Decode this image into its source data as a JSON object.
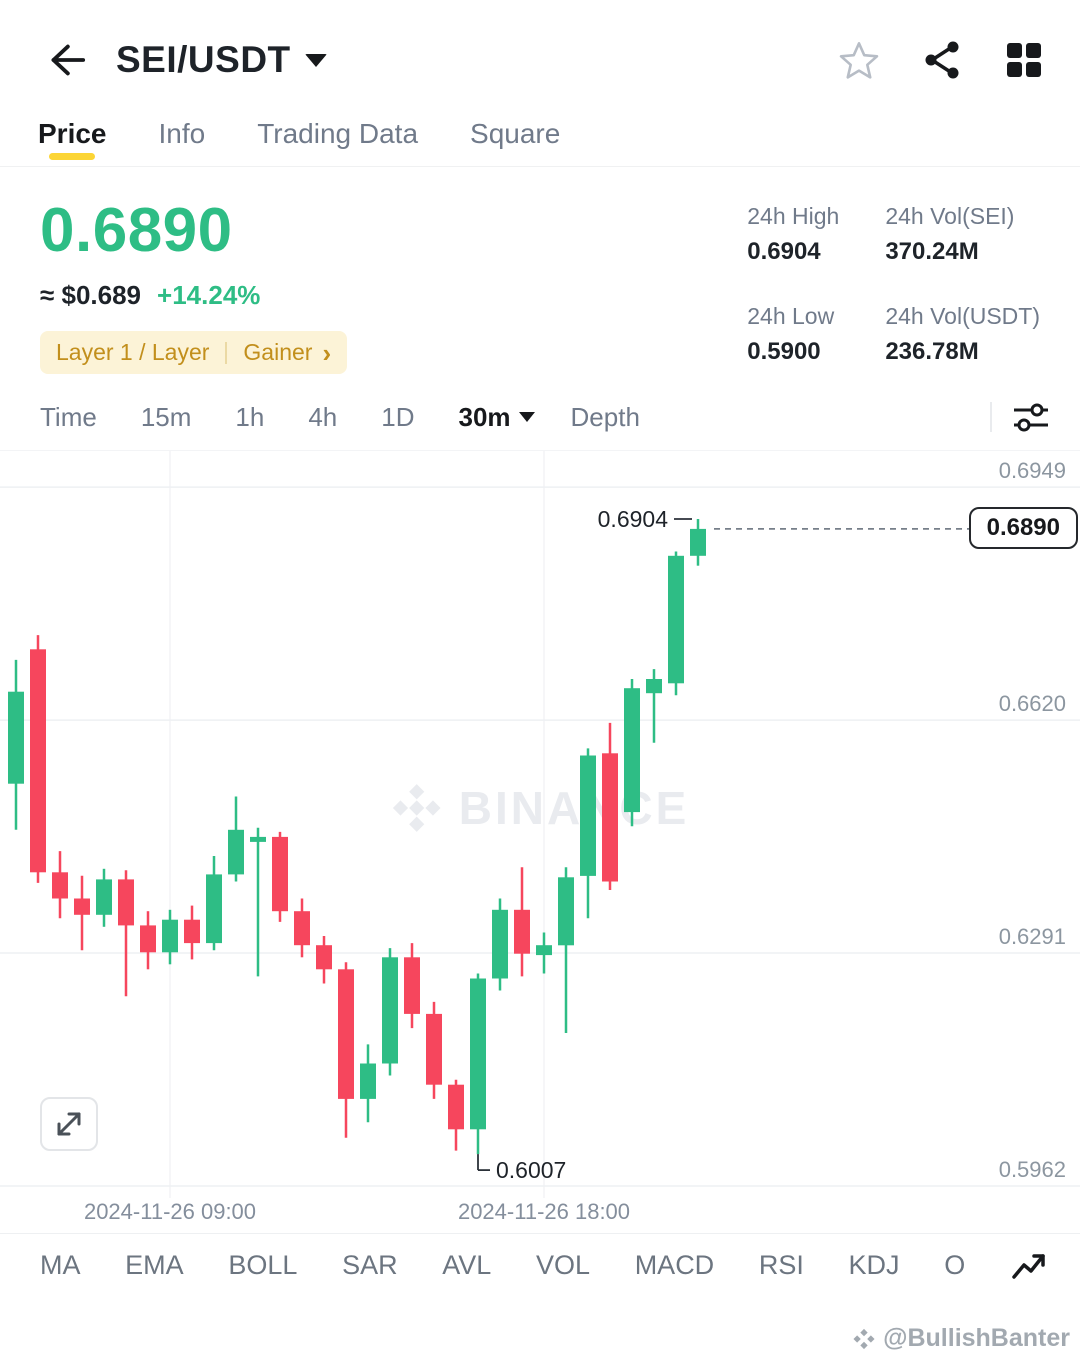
{
  "header": {
    "title": "SEI/USDT"
  },
  "tabs": [
    {
      "label": "Price",
      "active": true
    },
    {
      "label": "Info",
      "active": false
    },
    {
      "label": "Trading Data",
      "active": false
    },
    {
      "label": "Square",
      "active": false
    }
  ],
  "price": {
    "value": "0.6890",
    "approx": "≈ $0.689",
    "change": "+14.24%",
    "tag_left": "Layer 1 / Layer",
    "tag_right": "Gainer"
  },
  "stats": [
    {
      "label": "24h High",
      "value": "0.6904"
    },
    {
      "label": "24h Vol(SEI)",
      "value": "370.24M"
    },
    {
      "label": "24h Low",
      "value": "0.5900"
    },
    {
      "label": "24h Vol(USDT)",
      "value": "236.78M"
    }
  ],
  "timeframes": {
    "items": [
      "Time",
      "15m",
      "1h",
      "4h",
      "1D"
    ],
    "selected": "30m",
    "depth": "Depth"
  },
  "chart_data": {
    "type": "candlestick",
    "pair": "SEI/USDT",
    "interval": "30m",
    "current_price": 0.689,
    "current_price_label": "0.6890",
    "axis": {
      "price_max": 0.7,
      "price_min": 0.5945
    },
    "y_gridlines": [
      0.6949,
      0.662,
      0.6291,
      0.5962
    ],
    "y_axis_labels": [
      "0.6949",
      "0.6620",
      "0.6291",
      "0.5962"
    ],
    "high_annotation": {
      "index": 31,
      "label": "0.6904",
      "price": 0.6904
    },
    "low_annotation": {
      "index": 21,
      "label": "0.6007",
      "price": 0.6007
    },
    "x_labels": [
      {
        "text": "2024-11-26 09:00",
        "index": 7
      },
      {
        "text": "2024-11-26 18:00",
        "index": 24
      }
    ],
    "candles": [
      [
        0.653,
        0.6705,
        0.6465,
        0.666
      ],
      [
        0.672,
        0.674,
        0.639,
        0.6405
      ],
      [
        0.6405,
        0.6435,
        0.634,
        0.6368
      ],
      [
        0.6368,
        0.64,
        0.6295,
        0.6345
      ],
      [
        0.6345,
        0.641,
        0.6328,
        0.6395
      ],
      [
        0.6395,
        0.6408,
        0.623,
        0.633
      ],
      [
        0.633,
        0.635,
        0.6268,
        0.6292
      ],
      [
        0.6292,
        0.6352,
        0.6275,
        0.6338
      ],
      [
        0.6338,
        0.6358,
        0.6282,
        0.6305
      ],
      [
        0.6305,
        0.6428,
        0.6295,
        0.6402
      ],
      [
        0.6402,
        0.6512,
        0.6392,
        0.6465
      ],
      [
        0.6448,
        0.6468,
        0.6258,
        0.6455
      ],
      [
        0.6455,
        0.6462,
        0.6335,
        0.635
      ],
      [
        0.635,
        0.6368,
        0.6285,
        0.6302
      ],
      [
        0.6302,
        0.6315,
        0.6248,
        0.6268
      ],
      [
        0.6268,
        0.6278,
        0.603,
        0.6085
      ],
      [
        0.6085,
        0.6162,
        0.6052,
        0.6135
      ],
      [
        0.6135,
        0.6298,
        0.6118,
        0.6285
      ],
      [
        0.6285,
        0.6305,
        0.6185,
        0.6205
      ],
      [
        0.6205,
        0.6222,
        0.6085,
        0.6105
      ],
      [
        0.6105,
        0.6112,
        0.6012,
        0.6042
      ],
      [
        0.6042,
        0.6262,
        0.6007,
        0.6255
      ],
      [
        0.6255,
        0.6368,
        0.6238,
        0.6352
      ],
      [
        0.6352,
        0.6412,
        0.6258,
        0.629
      ],
      [
        0.6288,
        0.632,
        0.6262,
        0.6302
      ],
      [
        0.6302,
        0.6412,
        0.6178,
        0.6398
      ],
      [
        0.64,
        0.658,
        0.634,
        0.657
      ],
      [
        0.6573,
        0.6616,
        0.638,
        0.6392
      ],
      [
        0.649,
        0.6678,
        0.647,
        0.6665
      ],
      [
        0.6658,
        0.6692,
        0.6588,
        0.6678
      ],
      [
        0.6672,
        0.6858,
        0.6655,
        0.6852
      ],
      [
        0.6852,
        0.6904,
        0.6838,
        0.689
      ]
    ]
  },
  "indicators": [
    "MA",
    "EMA",
    "BOLL",
    "SAR",
    "AVL",
    "VOL",
    "MACD",
    "RSI",
    "KDJ",
    "O"
  ],
  "watermark": {
    "chart_text": "BINANCE",
    "credit": "@BullishBanter"
  },
  "icons": {
    "chevron_right": "›"
  },
  "colors": {
    "up": "#2EBD85",
    "down": "#F6465D",
    "accent": "#FCD535",
    "tag_text": "#C28F1C",
    "gray_text": "#707A8A"
  }
}
